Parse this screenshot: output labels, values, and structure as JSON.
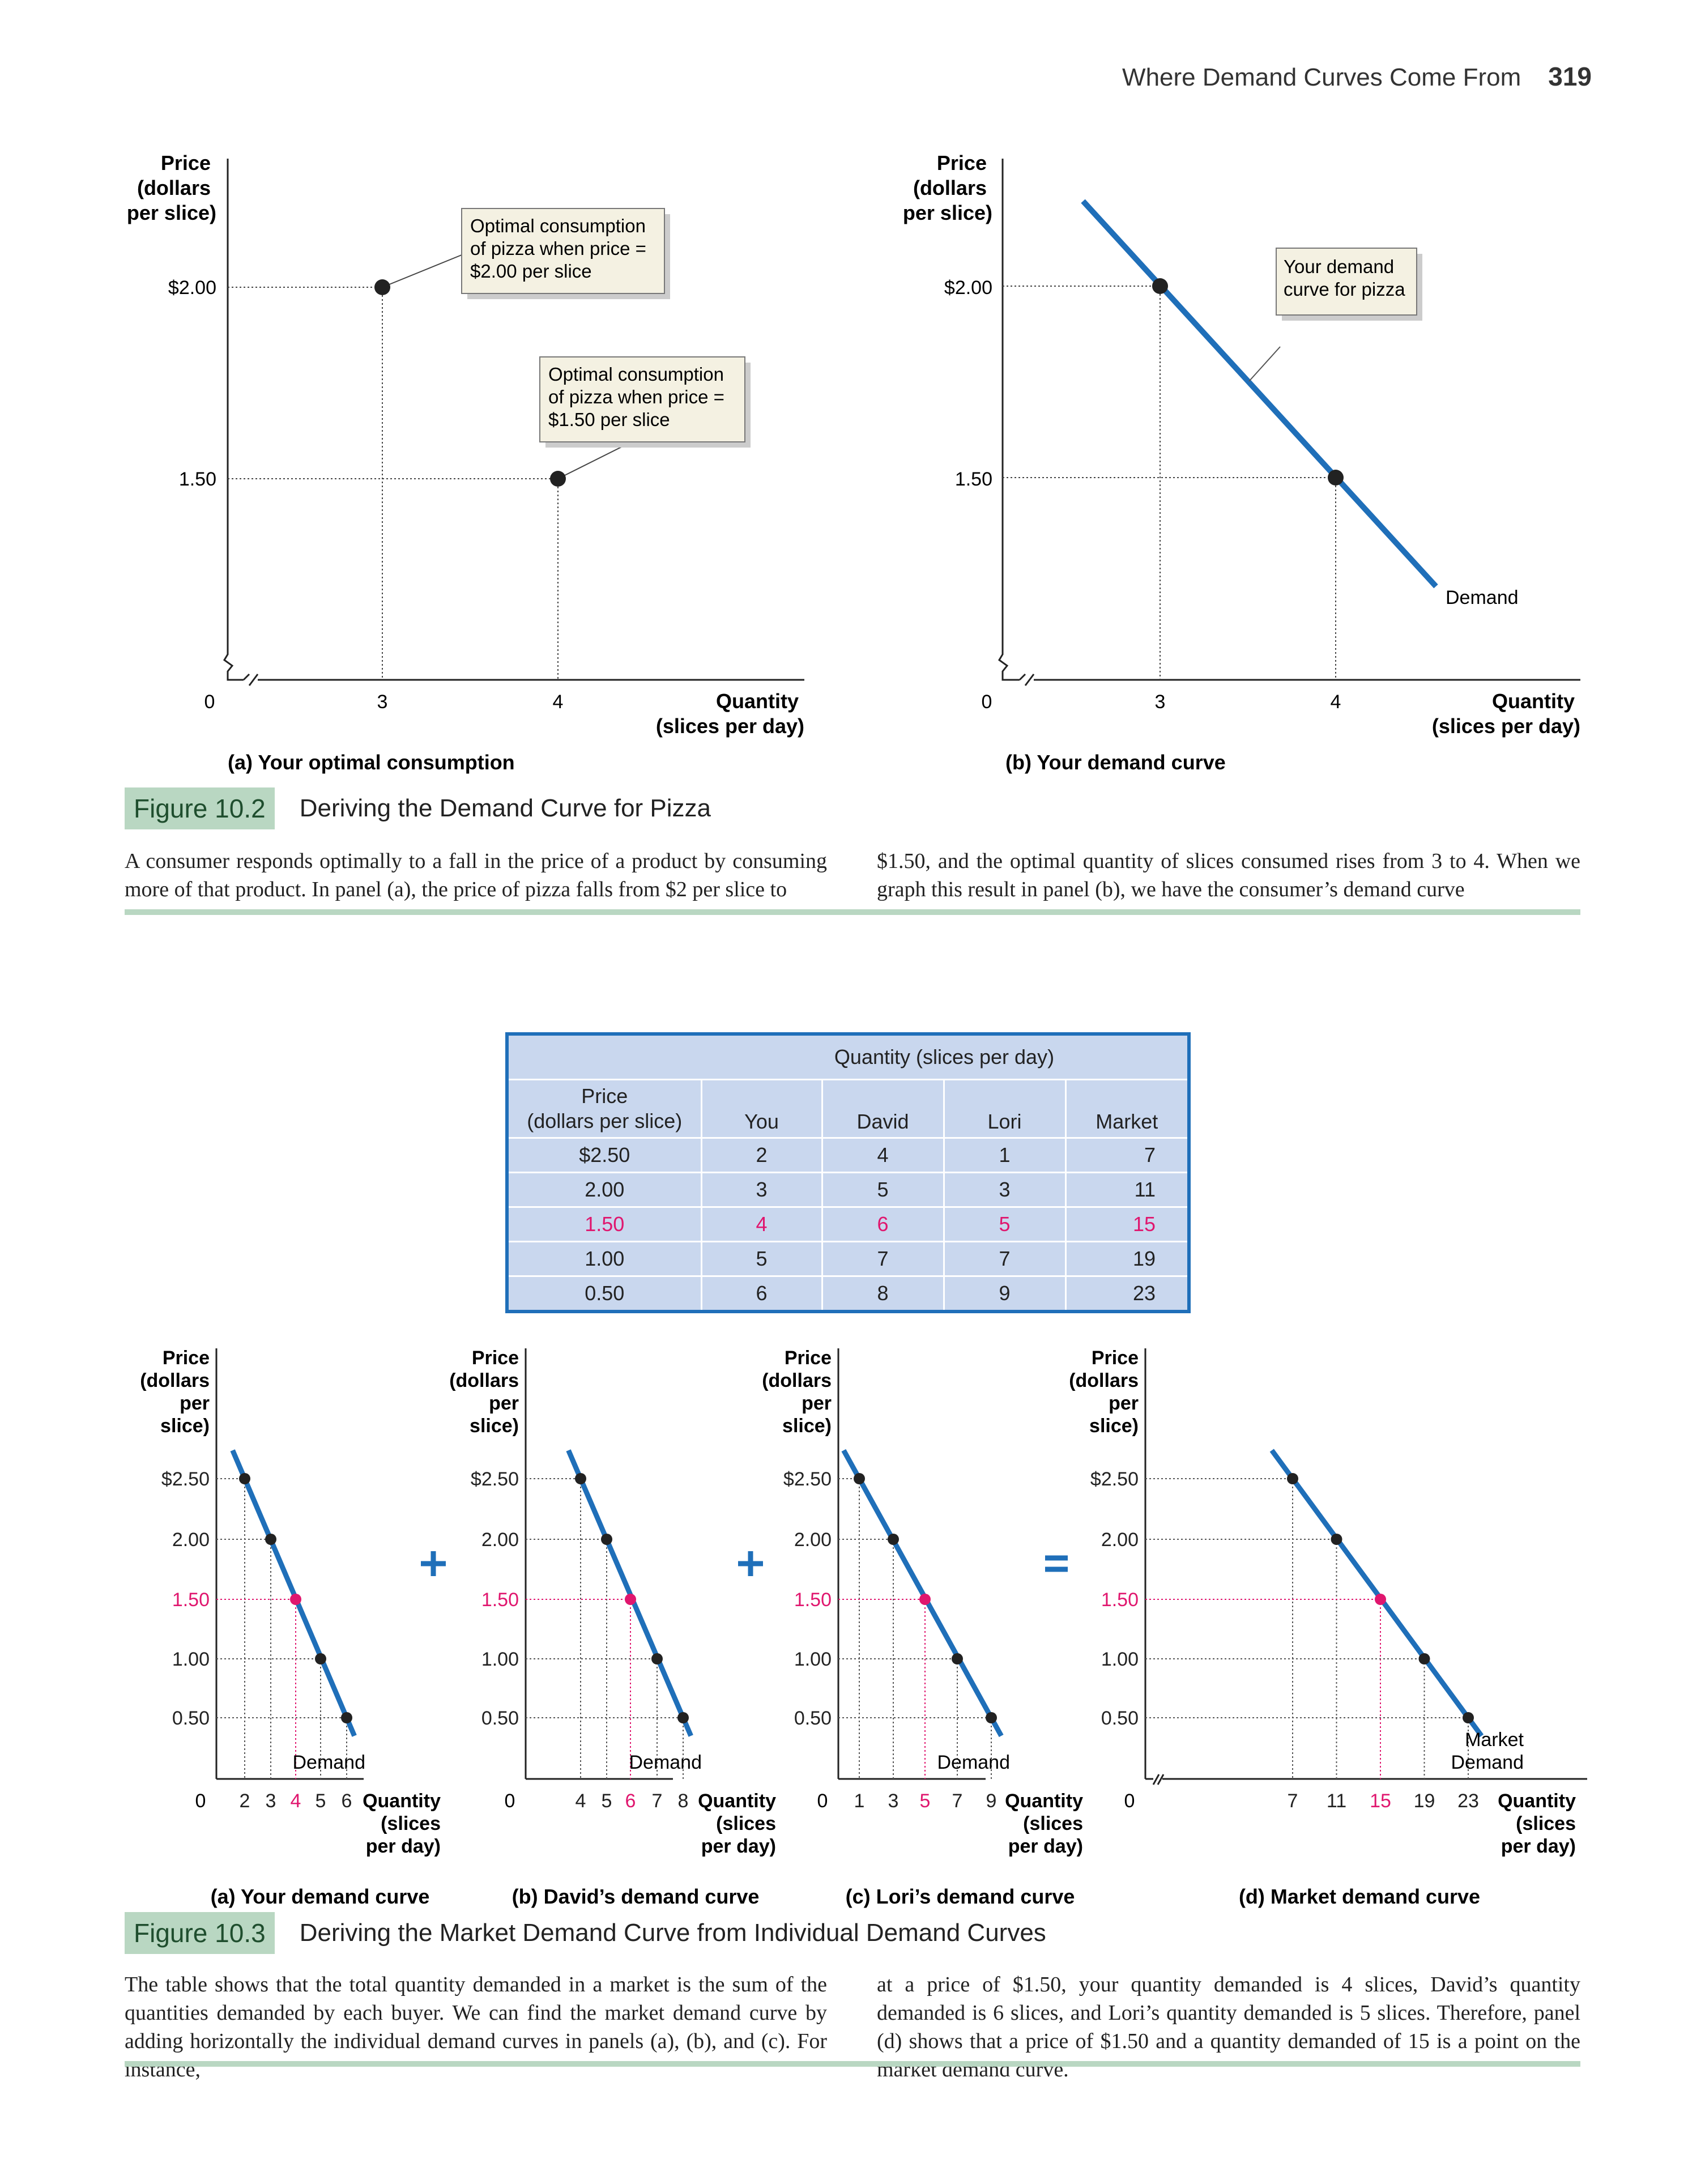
{
  "header": {
    "title": "Where Demand Curves Come From",
    "page": "319"
  },
  "fig102": {
    "panel_a": {
      "ylabel": [
        "Price",
        "(dollars",
        "per slice)"
      ],
      "xlabel": [
        "Quantity",
        "(slices per day)"
      ],
      "yticks": [
        "$2.00",
        "1.50"
      ],
      "xticks": [
        "0",
        "3",
        "4"
      ],
      "callout1": [
        "Optimal consumption",
        "of pizza when price =",
        "$2.00 per slice"
      ],
      "callout2": [
        "Optimal consumption",
        "of pizza when price =",
        "$1.50 per slice"
      ],
      "caption": "(a) Your optimal consumption"
    },
    "panel_b": {
      "ylabel": [
        "Price",
        "(dollars",
        "per slice)"
      ],
      "xlabel": [
        "Quantity",
        "(slices per day)"
      ],
      "yticks": [
        "$2.00",
        "1.50"
      ],
      "xticks": [
        "0",
        "3",
        "4"
      ],
      "callout": [
        "Your demand",
        "curve for pizza"
      ],
      "curve_label": "Demand",
      "caption": "(b) Your demand curve"
    },
    "label": "Figure 10.2",
    "title": "Deriving the Demand Curve for Pizza",
    "text_left": "A consumer responds optimally to a fall in the price of a product by consuming more of that product. In panel (a), the price of pizza falls from $2 per slice to",
    "text_right": "$1.50, and the optimal quantity of slices consumed rises from 3 to 4. When we graph this result in panel (b), we have the consumer’s demand curve"
  },
  "table": {
    "group_header": "Quantity (slices per day)",
    "col_price": [
      "Price",
      "(dollars per slice)"
    ],
    "columns": [
      "You",
      "David",
      "Lori",
      "Market"
    ],
    "rows": [
      [
        "$2.50",
        "2",
        "4",
        "1",
        "7"
      ],
      [
        "2.00",
        "3",
        "5",
        "3",
        "11"
      ],
      [
        "1.50",
        "4",
        "6",
        "5",
        "15"
      ],
      [
        "1.00",
        "5",
        "7",
        "7",
        "19"
      ],
      [
        "0.50",
        "6",
        "8",
        "9",
        "23"
      ]
    ]
  },
  "fig103": {
    "panels": [
      {
        "ylabel": [
          "Price",
          "(dollars",
          "per",
          "slice)"
        ],
        "xticks": [
          "0",
          "2",
          "3",
          "4",
          "5",
          "6"
        ],
        "xlabel": [
          "Quantity",
          "(slices",
          "per day)"
        ],
        "curve_label": [
          "Demand"
        ],
        "caption": "(a) Your demand curve",
        "op": "+"
      },
      {
        "ylabel": [
          "Price",
          "(dollars",
          "per",
          "slice)"
        ],
        "xticks": [
          "0",
          "4",
          "5",
          "6",
          "7",
          "8"
        ],
        "xlabel": [
          "Quantity",
          "(slices",
          "per day)"
        ],
        "curve_label": [
          "Demand"
        ],
        "caption": "(b) David’s demand curve",
        "op": "+"
      },
      {
        "ylabel": [
          "Price",
          "(dollars",
          "per",
          "slice)"
        ],
        "xticks": [
          "0",
          "1",
          "3",
          "5",
          "7",
          "9"
        ],
        "xlabel": [
          "Quantity",
          "(slices",
          "per day)"
        ],
        "curve_label": [
          "Demand"
        ],
        "caption": "(c) Lori’s demand curve",
        "op": "="
      },
      {
        "ylabel": [
          "Price",
          "(dollars",
          "per",
          "slice)"
        ],
        "xticks": [
          "0",
          "7",
          "11",
          "15",
          "19",
          "23"
        ],
        "xlabel": [
          "Quantity",
          "(slices",
          "per day)"
        ],
        "curve_label": [
          "Market",
          "Demand"
        ],
        "caption": "(d) Market demand curve",
        "op": ""
      }
    ],
    "yticks": [
      "$2.50",
      "2.00",
      "1.50",
      "1.00",
      "0.50"
    ],
    "label": "Figure 10.3",
    "title": "Deriving the Market Demand Curve from Individual Demand Curves",
    "text_left": "The table shows that the total quantity demanded in a market is the sum of the quantities demanded by each buyer. We can find the market demand curve by adding horizontally the individual demand curves in panels (a), (b), and (c). For instance,",
    "text_right": "at a price of $1.50, your quantity demanded is 4 slices, David’s quantity demanded is 6 slices, and Lori’s quantity demanded is 5 slices. Therefore, panel (d) shows that a price of $1.50 and a quantity demanded of 15 is a point on the market demand curve."
  },
  "chart_data": [
    {
      "type": "scatter",
      "title": "(a) Your optimal consumption",
      "xlabel": "Quantity (slices per day)",
      "ylabel": "Price (dollars per slice)",
      "x": [
        3,
        4
      ],
      "y": [
        2.0,
        1.5
      ]
    },
    {
      "type": "line",
      "title": "(b) Your demand curve",
      "xlabel": "Quantity (slices per day)",
      "ylabel": "Price (dollars per slice)",
      "series": [
        {
          "name": "Demand",
          "x": [
            3,
            4
          ],
          "y": [
            2.0,
            1.5
          ]
        }
      ]
    },
    {
      "type": "line",
      "title": "(a) Your demand curve",
      "series": [
        {
          "name": "Demand",
          "x": [
            2,
            3,
            4,
            5,
            6
          ],
          "y": [
            2.5,
            2.0,
            1.5,
            1.0,
            0.5
          ]
        }
      ],
      "highlight_y": 1.5
    },
    {
      "type": "line",
      "title": "(b) David’s demand curve",
      "series": [
        {
          "name": "Demand",
          "x": [
            4,
            5,
            6,
            7,
            8
          ],
          "y": [
            2.5,
            2.0,
            1.5,
            1.0,
            0.5
          ]
        }
      ],
      "highlight_y": 1.5
    },
    {
      "type": "line",
      "title": "(c) Lori’s demand curve",
      "series": [
        {
          "name": "Demand",
          "x": [
            1,
            3,
            5,
            7,
            9
          ],
          "y": [
            2.5,
            2.0,
            1.5,
            1.0,
            0.5
          ]
        }
      ],
      "highlight_y": 1.5
    },
    {
      "type": "line",
      "title": "(d) Market demand curve",
      "series": [
        {
          "name": "Market Demand",
          "x": [
            7,
            11,
            15,
            19,
            23
          ],
          "y": [
            2.5,
            2.0,
            1.5,
            1.0,
            0.5
          ]
        }
      ],
      "highlight_y": 1.5
    }
  ],
  "colors": {
    "curve": "#1f6fb9",
    "highlight": "#e0166e",
    "green": "#b9d7c2",
    "table_bg": "#c9d7ee"
  }
}
